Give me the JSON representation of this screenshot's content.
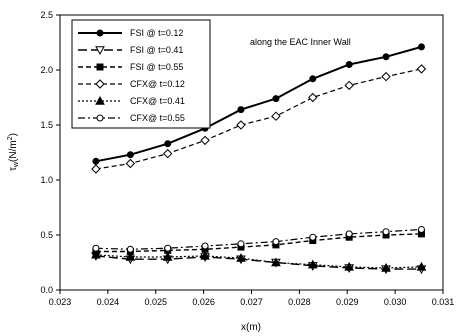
{
  "chart_data": {
    "type": "line",
    "title": "",
    "annotation": "along the EAC Inner Wall",
    "xlabel": "x(m)",
    "ylabel": "τw(N/m²)",
    "ylabel_main": "τ",
    "ylabel_sub": "w",
    "ylabel_unit": "(N/m",
    "ylabel_sup": "2",
    "ylabel_close": ")",
    "xlim": [
      0.023,
      0.031
    ],
    "ylim": [
      0.0,
      2.5
    ],
    "xticks": [
      0.023,
      0.024,
      0.025,
      0.026,
      0.027,
      0.028,
      0.029,
      0.03,
      0.031
    ],
    "xtick_labels": [
      "0.023",
      "0.024",
      "0.025",
      "0.026",
      "0.027",
      "0.028",
      "0.029",
      "0.030",
      "0.031"
    ],
    "yticks": [
      0.0,
      0.5,
      1.0,
      1.5,
      2.0,
      2.5
    ],
    "ytick_labels": [
      "0.0",
      "0.5",
      "1.0",
      "1.5",
      "2.0",
      "2.5"
    ],
    "legend_position": "top-left",
    "grid": false,
    "x": [
      0.02375,
      0.02447,
      0.02525,
      0.02603,
      0.02678,
      0.02751,
      0.02828,
      0.02904,
      0.02981,
      0.03055
    ],
    "series": [
      {
        "name": "FSI @ t=0.12",
        "values": [
          1.17,
          1.23,
          1.33,
          1.47,
          1.64,
          1.74,
          1.92,
          2.05,
          2.12,
          2.21
        ],
        "line": "solid",
        "marker": "circle",
        "filled": true,
        "stroke_width": 2
      },
      {
        "name": "FSI @ t=0.41",
        "values": [
          0.31,
          0.28,
          0.28,
          0.3,
          0.28,
          0.25,
          0.22,
          0.2,
          0.19,
          0.19
        ],
        "line": "longdash",
        "marker": "triangle-down",
        "filled": false,
        "stroke_width": 1.4
      },
      {
        "name": "FSI @ t=0.55",
        "values": [
          0.35,
          0.35,
          0.36,
          0.37,
          0.39,
          0.41,
          0.45,
          0.48,
          0.5,
          0.51
        ],
        "line": "dash",
        "marker": "square",
        "filled": true,
        "stroke_width": 1.4
      },
      {
        "name": "CFX@ t=0.12",
        "values": [
          1.1,
          1.15,
          1.24,
          1.36,
          1.5,
          1.58,
          1.75,
          1.86,
          1.94,
          2.01
        ],
        "line": "dash",
        "marker": "diamond",
        "filled": false,
        "stroke_width": 1.2
      },
      {
        "name": "CFX@ t=0.41",
        "values": [
          0.32,
          0.3,
          0.3,
          0.31,
          0.29,
          0.25,
          0.23,
          0.21,
          0.2,
          0.21
        ],
        "line": "dot",
        "marker": "triangle-up",
        "filled": true,
        "stroke_width": 1.2
      },
      {
        "name": "CFX@ t=0.55",
        "values": [
          0.38,
          0.37,
          0.38,
          0.4,
          0.42,
          0.44,
          0.48,
          0.51,
          0.53,
          0.55
        ],
        "line": "dashdot",
        "marker": "circle",
        "filled": false,
        "stroke_width": 1.2
      }
    ]
  }
}
